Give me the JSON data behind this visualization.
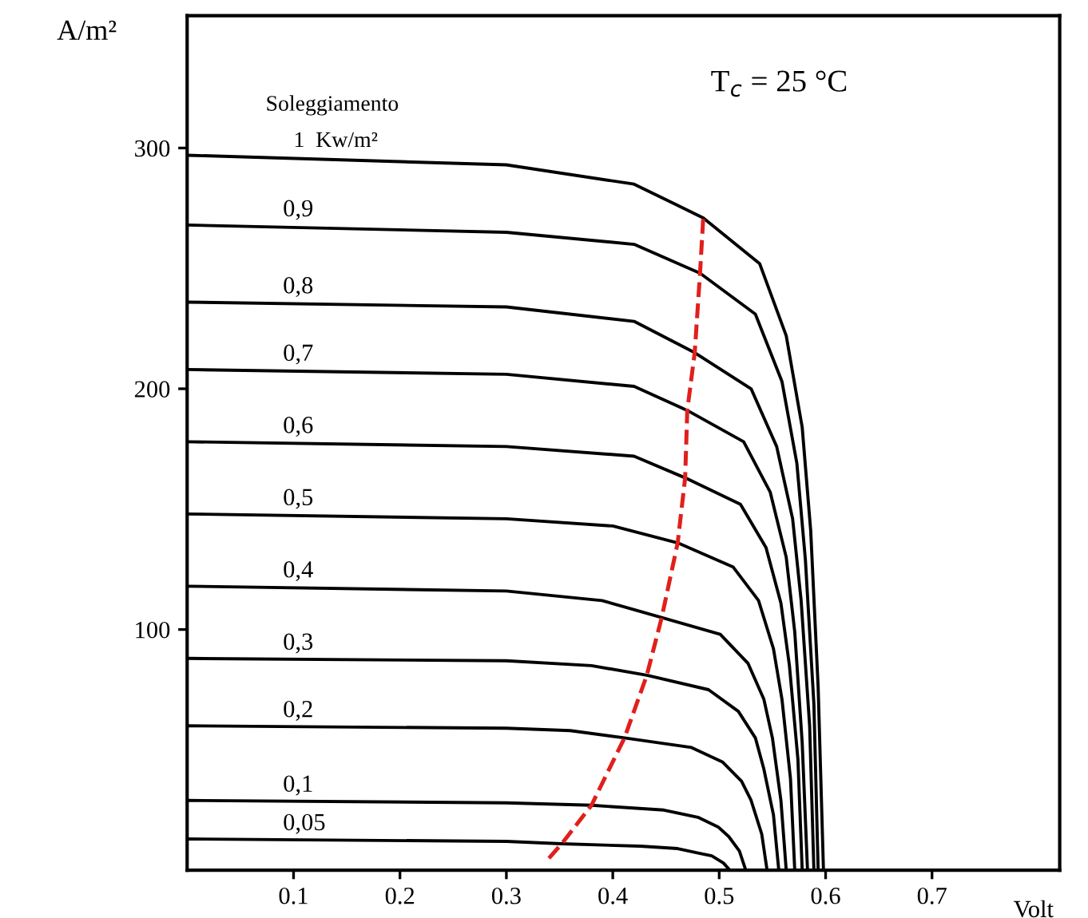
{
  "chart_data": {
    "type": "line",
    "xlabel": "Volt",
    "ylabel": "A/m²",
    "xlim": [
      0,
      0.82
    ],
    "ylim": [
      0,
      355
    ],
    "xticks": [
      0.1,
      0.2,
      0.3,
      0.4,
      0.5,
      0.6,
      0.7
    ],
    "yticks": [
      100,
      200,
      300
    ],
    "grid": false,
    "legend": false,
    "marker": "none",
    "line_style": "solid",
    "annotations": [
      "Soleggiamento",
      "T$_{c}$ = 25 °C"
    ],
    "series": [
      {
        "name": "1  Kw/m²",
        "color": "#000000",
        "x": [
          0,
          0.3,
          0.42,
          0.485,
          0.538,
          0.563,
          0.578,
          0.586,
          0.593,
          0.598
        ],
        "values": [
          297,
          293,
          285,
          271,
          252,
          222,
          184,
          141,
          76,
          0
        ]
      },
      {
        "name": "0,9",
        "color": "#000000",
        "x": [
          0,
          0.3,
          0.42,
          0.482,
          0.534,
          0.559,
          0.573,
          0.581,
          0.589,
          0.593
        ],
        "values": [
          268,
          265,
          260,
          248,
          231,
          203,
          169,
          129,
          69,
          0
        ]
      },
      {
        "name": "0,8",
        "color": "#000000",
        "x": [
          0,
          0.3,
          0.42,
          0.477,
          0.53,
          0.554,
          0.569,
          0.577,
          0.585,
          0.589
        ],
        "values": [
          236,
          234,
          228,
          215,
          200,
          176,
          146,
          112,
          60,
          0
        ]
      },
      {
        "name": "0,7",
        "color": "#000000",
        "x": [
          0,
          0.3,
          0.42,
          0.47,
          0.523,
          0.548,
          0.563,
          0.571,
          0.578,
          0.583
        ],
        "values": [
          208,
          206,
          201,
          191,
          178,
          157,
          130,
          99,
          53,
          0
        ]
      },
      {
        "name": "0,6",
        "color": "#000000",
        "x": [
          0,
          0.3,
          0.42,
          0.468,
          0.52,
          0.544,
          0.558,
          0.566,
          0.574,
          0.578
        ],
        "values": [
          178,
          176,
          172,
          163,
          152,
          134,
          111,
          85,
          46,
          0
        ]
      },
      {
        "name": "0,5",
        "color": "#000000",
        "x": [
          0,
          0.3,
          0.4,
          0.461,
          0.513,
          0.537,
          0.551,
          0.559,
          0.567,
          0.571
        ],
        "values": [
          148,
          146,
          143,
          136,
          126,
          112,
          92,
          71,
          38,
          0
        ]
      },
      {
        "name": "0,4",
        "color": "#000000",
        "x": [
          0,
          0.3,
          0.39,
          0.446,
          0.501,
          0.527,
          0.542,
          0.55,
          0.558,
          0.563
        ],
        "values": [
          118,
          116,
          112,
          105,
          98,
          86,
          71,
          55,
          29,
          0
        ]
      },
      {
        "name": "0,3",
        "color": "#000000",
        "x": [
          0,
          0.3,
          0.38,
          0.432,
          0.49,
          0.518,
          0.534,
          0.542,
          0.551,
          0.556
        ],
        "values": [
          88,
          87,
          85,
          81,
          75,
          66,
          55,
          42,
          23,
          0
        ]
      },
      {
        "name": "0,2",
        "color": "#000000",
        "x": [
          0,
          0.3,
          0.36,
          0.411,
          0.474,
          0.503,
          0.521,
          0.53,
          0.54,
          0.545
        ],
        "values": [
          60,
          59,
          58,
          55,
          51,
          45,
          37,
          29,
          15,
          0
        ]
      },
      {
        "name": "0,1",
        "color": "#000000",
        "x": [
          0,
          0.3,
          0.38,
          0.448,
          0.48,
          0.499,
          0.509,
          0.519,
          0.525
        ],
        "values": [
          29,
          28,
          27,
          25,
          22,
          18,
          14,
          8,
          0
        ]
      },
      {
        "name": "0,05",
        "color": "#000000",
        "x": [
          0,
          0.3,
          0.352,
          0.426,
          0.461,
          0.482,
          0.493,
          0.504,
          0.51
        ],
        "values": [
          13,
          12,
          11,
          10,
          9,
          7,
          6,
          3,
          0
        ]
      },
      {
        "color": "#e0201c",
        "line_style": "dashed",
        "x": [
          0.34,
          0.352,
          0.38,
          0.411,
          0.432,
          0.446,
          0.461,
          0.468,
          0.47,
          0.477,
          0.482,
          0.485
        ],
        "values": [
          5,
          11,
          27,
          55,
          81,
          105,
          136,
          163,
          191,
          215,
          248,
          271
        ]
      }
    ]
  }
}
